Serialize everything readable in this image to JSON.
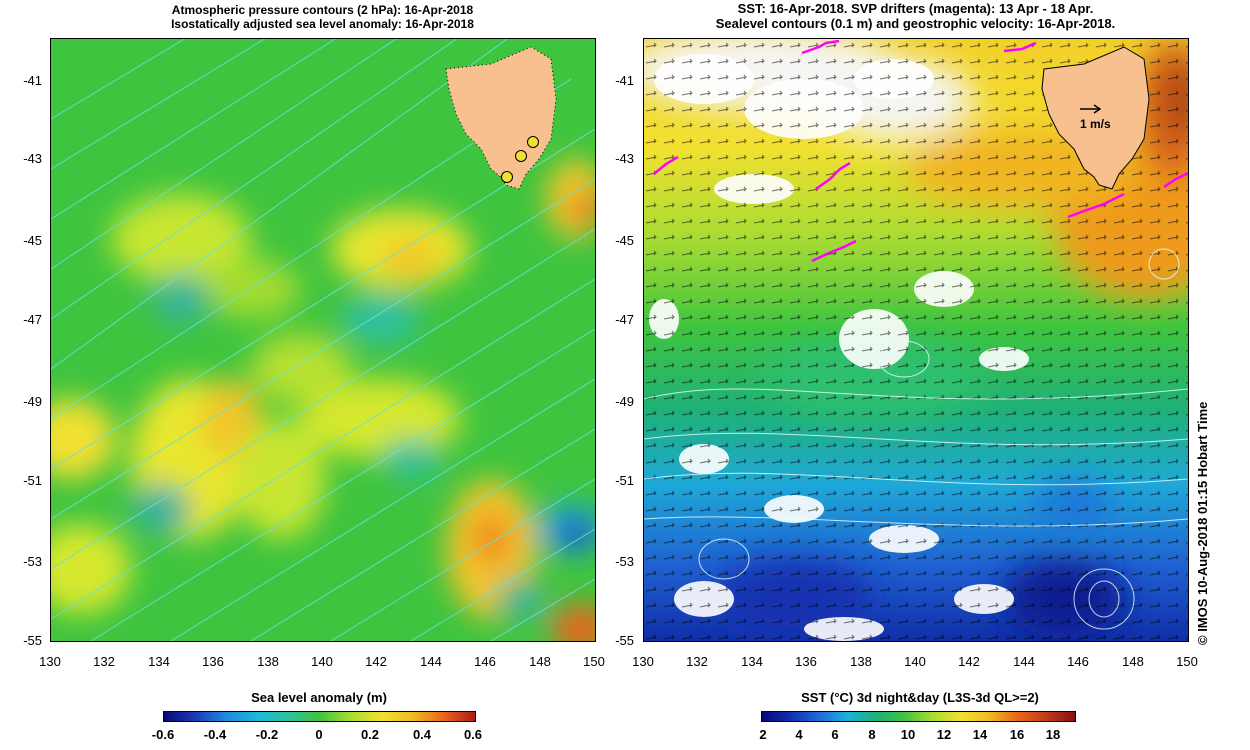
{
  "left_panel": {
    "title_line1": "Atmospheric pressure contours (2 hPa): 16-Apr-2018",
    "title_line2": "Isostatically adjusted sea level anomaly: 16-Apr-2018",
    "colorbar_label": "Sea level anomaly (m)",
    "colorbar_ticks": [
      "-0.6",
      "-0.4",
      "-0.2",
      "0",
      "0.2",
      "0.4",
      "0.6"
    ]
  },
  "right_panel": {
    "title_line1": "SST: 16-Apr-2018. SVP drifters (magenta): 13 Apr - 18 Apr.",
    "title_line2": "Sealevel contours (0.1 m) and geostrophic velocity: 16-Apr-2018.",
    "colorbar_label": "SST (°C) 3d night&day (L3S-3d QL>=2)",
    "colorbar_ticks": [
      "2",
      "4",
      "6",
      "8",
      "10",
      "12",
      "14",
      "16",
      "18"
    ],
    "velocity_scale_label": "1 m/s"
  },
  "axes": {
    "lat_ticks": [
      "-41",
      "-43",
      "-45",
      "-47",
      "-49",
      "-51",
      "-53",
      "-55"
    ],
    "lon_ticks": [
      "130",
      "132",
      "134",
      "136",
      "138",
      "140",
      "142",
      "144",
      "146",
      "148",
      "150"
    ]
  },
  "credit": "© IMOS 10-Aug-2018 01:15 Hobart Time",
  "colors": {
    "land": "#f9c08f",
    "drifter": "#ff00ff",
    "contour": "#66e0e0"
  }
}
